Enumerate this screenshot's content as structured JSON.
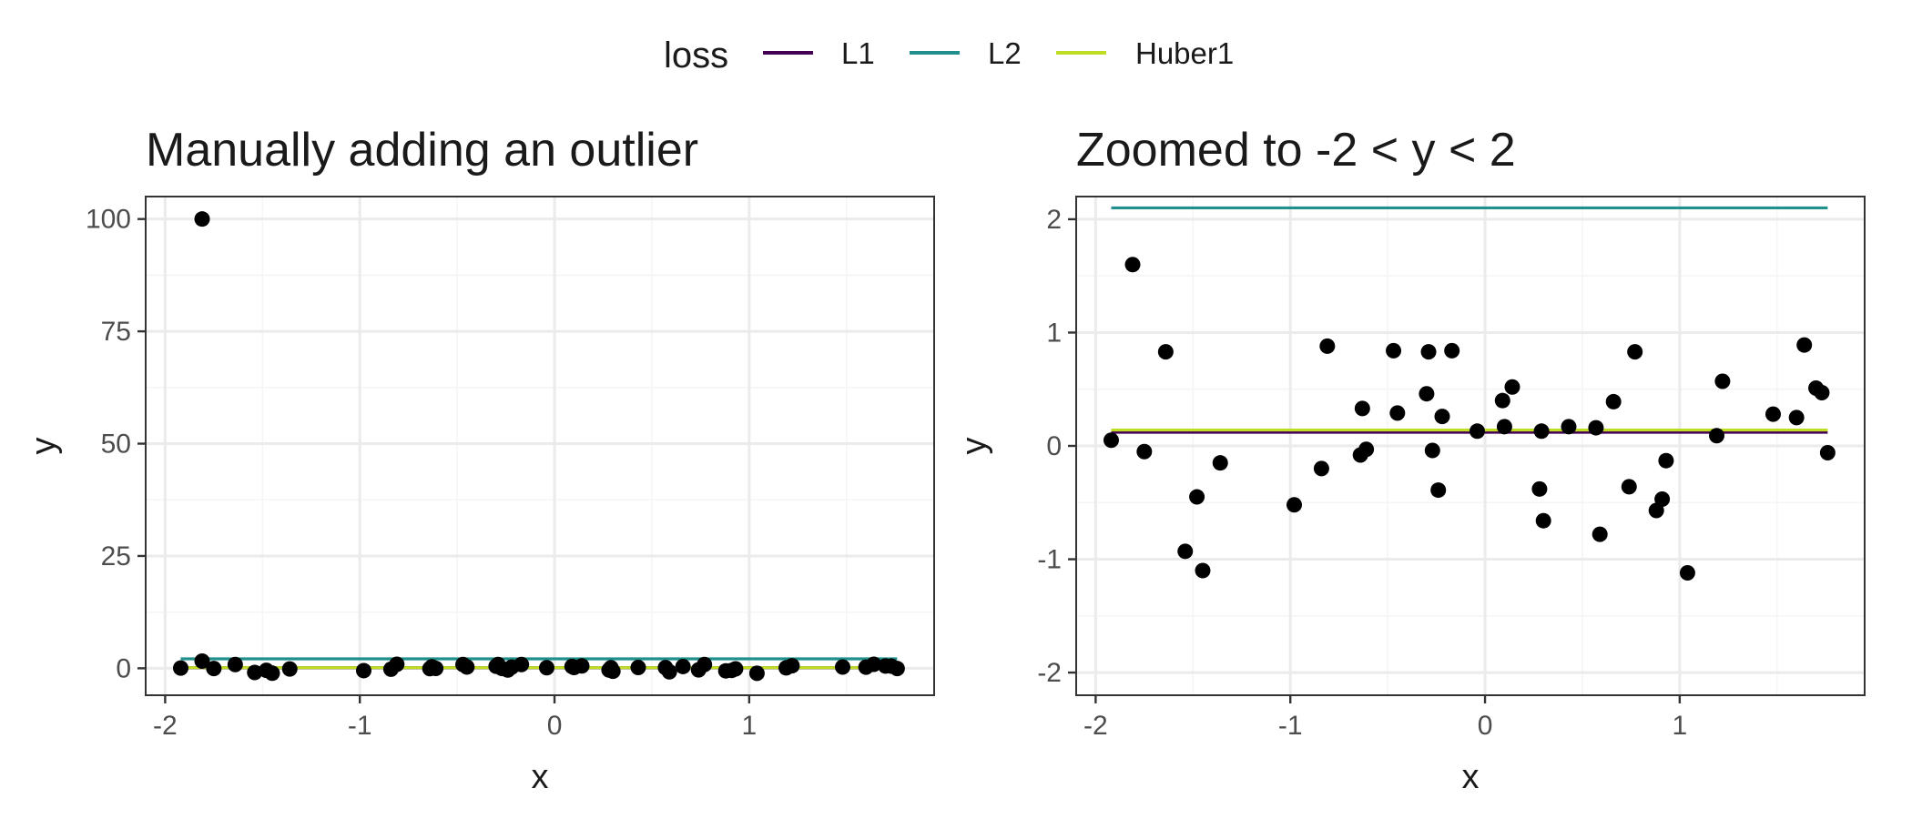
{
  "legend": {
    "title": "loss",
    "entries": [
      {
        "name": "L1",
        "color": "#440154"
      },
      {
        "name": "L2",
        "color": "#21908C"
      },
      {
        "name": "Huber1",
        "color": "#BEDD23"
      }
    ]
  },
  "chart_data": [
    {
      "type": "scatter",
      "title": "Manually adding an outlier",
      "xlabel": "x",
      "ylabel": "y",
      "xlim": [
        -2.1,
        1.95
      ],
      "ylim": [
        -6,
        105
      ],
      "xticks": [
        -2,
        -1,
        0,
        1
      ],
      "xtick_labels": [
        "-2",
        "-1",
        "0",
        "1"
      ],
      "yticks": [
        0,
        25,
        50,
        75,
        100
      ],
      "ytick_labels": [
        "0",
        "25",
        "50",
        "75",
        "100"
      ],
      "grid": true,
      "point_color": "#000000",
      "points": {
        "x": [
          -1.92,
          -1.81,
          -1.75,
          -1.64,
          -1.54,
          -1.48,
          -1.45,
          -1.36,
          -0.98,
          -0.84,
          -0.81,
          -0.64,
          -0.63,
          -0.61,
          -0.47,
          -0.45,
          -0.3,
          -0.29,
          -0.27,
          -0.24,
          -0.22,
          -0.17,
          -0.04,
          0.09,
          0.1,
          0.14,
          0.28,
          0.29,
          0.3,
          0.43,
          0.57,
          0.59,
          0.66,
          0.74,
          0.77,
          0.88,
          0.91,
          0.93,
          1.04,
          1.19,
          1.22,
          1.48,
          1.6,
          1.64,
          1.7,
          1.73,
          1.76,
          -1.81
        ],
        "y": [
          0.05,
          1.6,
          -0.05,
          0.83,
          -0.93,
          -0.45,
          -1.1,
          -0.15,
          -0.52,
          -0.2,
          0.88,
          -0.08,
          0.33,
          -0.03,
          0.84,
          0.29,
          0.46,
          0.83,
          -0.04,
          -0.39,
          0.26,
          0.84,
          0.13,
          0.4,
          0.17,
          0.52,
          -0.38,
          0.13,
          -0.66,
          0.17,
          0.16,
          -0.78,
          0.39,
          -0.36,
          0.83,
          -0.57,
          -0.47,
          -0.13,
          -1.12,
          0.09,
          0.57,
          0.28,
          0.25,
          0.89,
          0.51,
          0.47,
          -0.06,
          100
        ]
      },
      "series": [
        {
          "name": "L1",
          "x": [
            -1.92,
            1.76
          ],
          "y": [
            0.12,
            0.12
          ],
          "color": "#440154"
        },
        {
          "name": "L2",
          "x": [
            -1.92,
            1.76
          ],
          "y": [
            2.1,
            2.1
          ],
          "color": "#21908C"
        },
        {
          "name": "Huber1",
          "x": [
            -1.92,
            1.76
          ],
          "y": [
            0.14,
            0.14
          ],
          "color": "#BEDD23"
        }
      ]
    },
    {
      "type": "scatter",
      "title": "Zoomed to -2 < y < 2",
      "xlabel": "x",
      "ylabel": "y",
      "xlim": [
        -2.1,
        1.95
      ],
      "ylim": [
        -2.2,
        2.2
      ],
      "xticks": [
        -2,
        -1,
        0,
        1
      ],
      "xtick_labels": [
        "-2",
        "-1",
        "0",
        "1"
      ],
      "yticks": [
        -2,
        -1,
        0,
        1,
        2
      ],
      "ytick_labels": [
        "-2",
        "-1",
        "0",
        "1",
        "2"
      ],
      "grid": true,
      "point_color": "#000000",
      "points": {
        "x": [
          -1.92,
          -1.81,
          -1.75,
          -1.64,
          -1.54,
          -1.48,
          -1.45,
          -1.36,
          -0.98,
          -0.84,
          -0.81,
          -0.64,
          -0.63,
          -0.61,
          -0.47,
          -0.45,
          -0.3,
          -0.29,
          -0.27,
          -0.24,
          -0.22,
          -0.17,
          -0.04,
          0.09,
          0.1,
          0.14,
          0.28,
          0.29,
          0.3,
          0.43,
          0.57,
          0.59,
          0.66,
          0.74,
          0.77,
          0.88,
          0.91,
          0.93,
          1.04,
          1.19,
          1.22,
          1.48,
          1.6,
          1.64,
          1.7,
          1.73,
          1.76
        ],
        "y": [
          0.05,
          1.6,
          -0.05,
          0.83,
          -0.93,
          -0.45,
          -1.1,
          -0.15,
          -0.52,
          -0.2,
          0.88,
          -0.08,
          0.33,
          -0.03,
          0.84,
          0.29,
          0.46,
          0.83,
          -0.04,
          -0.39,
          0.26,
          0.84,
          0.13,
          0.4,
          0.17,
          0.52,
          -0.38,
          0.13,
          -0.66,
          0.17,
          0.16,
          -0.78,
          0.39,
          -0.36,
          0.83,
          -0.57,
          -0.47,
          -0.13,
          -1.12,
          0.09,
          0.57,
          0.28,
          0.25,
          0.89,
          0.51,
          0.47,
          -0.06
        ]
      },
      "series": [
        {
          "name": "L1",
          "x": [
            -1.92,
            1.76
          ],
          "y": [
            0.12,
            0.12
          ],
          "color": "#440154"
        },
        {
          "name": "L2",
          "x": [
            -1.92,
            1.76
          ],
          "y": [
            2.1,
            2.1
          ],
          "color": "#21908C"
        },
        {
          "name": "Huber1",
          "x": [
            -1.92,
            1.76
          ],
          "y": [
            0.14,
            0.14
          ],
          "color": "#BEDD23"
        }
      ]
    }
  ]
}
